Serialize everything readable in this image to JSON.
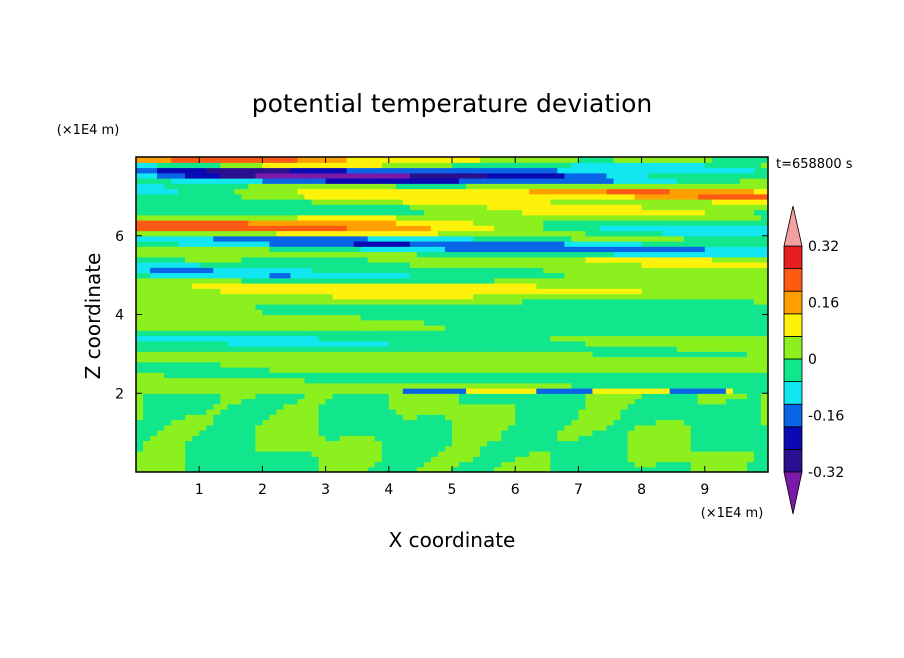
{
  "chart_data": {
    "type": "heatmap",
    "title": "potential temperature deviation",
    "xlabel": "X coordinate",
    "ylabel": "Z coordinate",
    "x_unit_label": "(×1E4 m)",
    "y_unit_label": "(×1E4 m)",
    "time_label": "t=658800 s",
    "xlim": [
      0,
      10
    ],
    "ylim": [
      0,
      8
    ],
    "x_ticks": [
      1,
      2,
      3,
      4,
      5,
      6,
      7,
      8,
      9
    ],
    "x_tick_labels": [
      "1",
      "2",
      "3",
      "4",
      "5",
      "6",
      "7",
      "8",
      "9"
    ],
    "y_ticks": [
      2,
      4,
      6
    ],
    "y_tick_labels": [
      "2",
      "4",
      "6"
    ],
    "colorbar": {
      "levels": [
        -0.4,
        -0.32,
        -0.24,
        -0.16,
        -0.08,
        0,
        0.08,
        0.16,
        0.24,
        0.32,
        0.4
      ],
      "colors": [
        "#7a1aa8",
        "#2a0f8f",
        "#0a0ab4",
        "#0a64e6",
        "#12e6f0",
        "#12e68c",
        "#8cf01e",
        "#fff20a",
        "#ffa000",
        "#ff5a14",
        "#e61e1e",
        "#f5a0a0"
      ],
      "labels": [
        "0.32",
        "0.16",
        "0",
        "-0.16",
        "-0.32"
      ],
      "label_values": [
        0.32,
        0.16,
        0,
        -0.16,
        -0.32
      ]
    },
    "features": [
      {
        "region": "z<2",
        "description_values": [
          -0.04,
          0.04
        ]
      },
      {
        "region": "2<z<5",
        "description_values": [
          -0.08,
          0.12
        ]
      },
      {
        "region": "5<z<8",
        "description_values": [
          -0.4,
          0.4
        ]
      }
    ]
  }
}
